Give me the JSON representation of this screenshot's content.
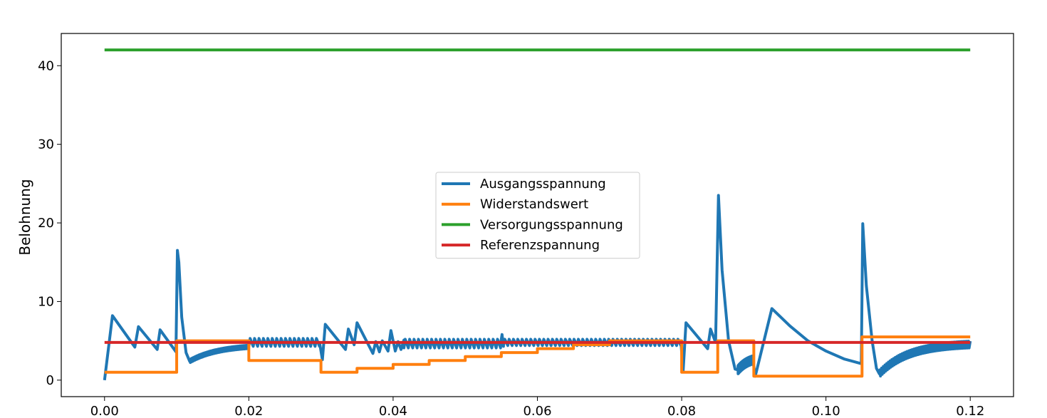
{
  "chart_data": {
    "type": "line",
    "title": "",
    "xlabel": "",
    "ylabel": "Belohnung",
    "xlim": [
      -0.006,
      0.126
    ],
    "ylim": [
      -2.1,
      44.1
    ],
    "xticks": [
      0.0,
      0.02,
      0.04,
      0.06,
      0.08,
      0.1,
      0.12
    ],
    "xtick_labels": [
      "0.00",
      "0.02",
      "0.04",
      "0.06",
      "0.08",
      "0.10",
      "0.12"
    ],
    "yticks": [
      0,
      10,
      20,
      30,
      40
    ],
    "ytick_labels": [
      "0",
      "10",
      "20",
      "30",
      "40"
    ],
    "grid": false,
    "legend_position": "center",
    "series": [
      {
        "name": "Ausgangsspannung",
        "color": "#1f77b4",
        "segments": [
          {
            "kind": "points",
            "points": [
              [
                0.0,
                0.0
              ],
              [
                0.0011,
                8.2
              ],
              [
                0.0042,
                4.2
              ],
              [
                0.0047,
                6.8
              ],
              [
                0.0073,
                3.9
              ],
              [
                0.0077,
                6.4
              ],
              [
                0.0099,
                3.6
              ],
              [
                0.0101,
                16.5
              ],
              [
                0.0103,
                15.0
              ],
              [
                0.0107,
                8.0
              ],
              [
                0.0113,
                3.5
              ],
              [
                0.0118,
                2.4
              ]
            ]
          },
          {
            "kind": "relax",
            "t0": 0.0118,
            "t1": 0.02,
            "v0": 2.4,
            "v1": 4.5,
            "tau": 0.004,
            "osc": 0.25
          },
          {
            "kind": "ripple",
            "t0": 0.02,
            "t1": 0.0298,
            "lo": 4.3,
            "hi": 5.3,
            "period": 0.0006
          },
          {
            "kind": "points",
            "points": [
              [
                0.0298,
                4.8
              ],
              [
                0.0302,
                2.6
              ],
              [
                0.0306,
                7.1
              ],
              [
                0.0334,
                3.9
              ],
              [
                0.0338,
                6.5
              ],
              [
                0.0346,
                4.5
              ],
              [
                0.035,
                7.3
              ],
              [
                0.0372,
                3.4
              ],
              [
                0.0376,
                4.9
              ],
              [
                0.0381,
                3.6
              ],
              [
                0.0385,
                5.0
              ],
              [
                0.0393,
                3.7
              ],
              [
                0.0397,
                6.3
              ],
              [
                0.0403,
                3.7
              ],
              [
                0.0407,
                4.9
              ],
              [
                0.0411,
                3.9
              ],
              [
                0.0415,
                5.1
              ]
            ]
          },
          {
            "kind": "ripple",
            "t0": 0.0415,
            "t1": 0.0549,
            "lo": 4.1,
            "hi": 5.2,
            "period": 0.0006
          },
          {
            "kind": "points",
            "points": [
              [
                0.0549,
                4.6
              ],
              [
                0.0551,
                5.8
              ],
              [
                0.0553,
                4.3
              ]
            ]
          },
          {
            "kind": "ripple",
            "t0": 0.0553,
            "t1": 0.0799,
            "lo": 4.4,
            "hi": 5.2,
            "period": 0.0006
          },
          {
            "kind": "points",
            "points": [
              [
                0.0799,
                4.8
              ],
              [
                0.0802,
                1.1
              ],
              [
                0.0806,
                7.3
              ],
              [
                0.0836,
                4.0
              ],
              [
                0.084,
                6.5
              ],
              [
                0.0847,
                4.8
              ],
              [
                0.0851,
                23.5
              ],
              [
                0.0856,
                14.0
              ],
              [
                0.0865,
                5.0
              ],
              [
                0.0874,
                1.4
              ],
              [
                0.0878,
                1.3
              ]
            ]
          },
          {
            "kind": "relax",
            "t0": 0.0878,
            "t1": 0.0898,
            "v0": 1.3,
            "v1": 3.0,
            "tau": 0.0015,
            "osc": 0.6
          },
          {
            "kind": "points",
            "points": [
              [
                0.0898,
                3.0
              ],
              [
                0.0902,
                0.5
              ],
              [
                0.0925,
                9.1
              ],
              [
                0.095,
                6.9
              ],
              [
                0.0975,
                5.0
              ],
              [
                0.1,
                3.7
              ],
              [
                0.1025,
                2.7
              ],
              [
                0.1049,
                2.1
              ],
              [
                0.1051,
                19.9
              ],
              [
                0.1056,
                12.0
              ],
              [
                0.1064,
                5.0
              ],
              [
                0.107,
                1.5
              ],
              [
                0.1074,
                0.8
              ]
            ]
          },
          {
            "kind": "relax",
            "t0": 0.1074,
            "t1": 0.12,
            "v0": 0.8,
            "v1": 4.7,
            "tau": 0.004,
            "osc": 0.5
          }
        ]
      },
      {
        "name": "Widerstandswert",
        "color": "#ff7f0e",
        "step_points": [
          [
            0.0,
            1.0
          ],
          [
            0.01,
            1.0
          ],
          [
            0.01,
            5.0
          ],
          [
            0.02,
            5.0
          ],
          [
            0.02,
            2.5
          ],
          [
            0.03,
            2.5
          ],
          [
            0.03,
            1.0
          ],
          [
            0.035,
            1.0
          ],
          [
            0.035,
            1.5
          ],
          [
            0.04,
            1.5
          ],
          [
            0.04,
            2.0
          ],
          [
            0.045,
            2.0
          ],
          [
            0.045,
            2.5
          ],
          [
            0.05,
            2.5
          ],
          [
            0.05,
            3.0
          ],
          [
            0.055,
            3.0
          ],
          [
            0.055,
            3.5
          ],
          [
            0.06,
            3.5
          ],
          [
            0.06,
            4.0
          ],
          [
            0.065,
            4.0
          ],
          [
            0.065,
            4.5
          ],
          [
            0.07,
            4.5
          ],
          [
            0.07,
            5.0
          ],
          [
            0.08,
            5.0
          ],
          [
            0.08,
            1.0
          ],
          [
            0.085,
            1.0
          ],
          [
            0.085,
            5.0
          ],
          [
            0.09,
            5.0
          ],
          [
            0.09,
            0.5
          ],
          [
            0.105,
            0.5
          ],
          [
            0.105,
            5.5
          ],
          [
            0.12,
            5.5
          ]
        ]
      },
      {
        "name": "Versorgungsspannung",
        "color": "#2ca02c",
        "step_points": [
          [
            0.0,
            42.0
          ],
          [
            0.12,
            42.0
          ]
        ]
      },
      {
        "name": "Referenzspannung",
        "color": "#d62728",
        "step_points": [
          [
            0.0,
            4.8
          ],
          [
            0.12,
            4.8
          ]
        ]
      }
    ]
  }
}
